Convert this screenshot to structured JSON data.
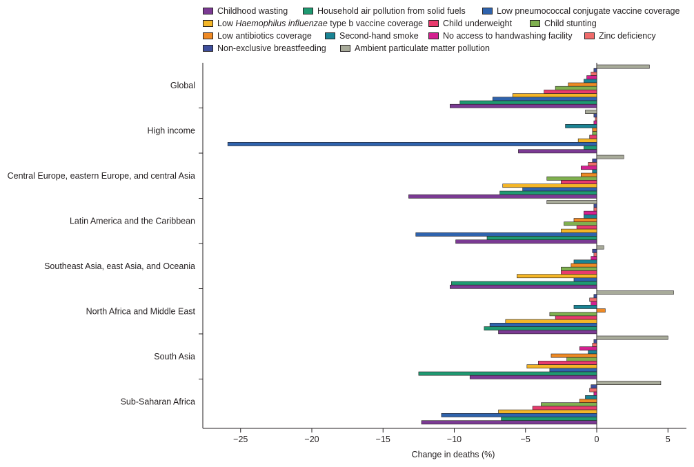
{
  "chart_data": {
    "type": "bar",
    "orientation": "horizontal",
    "title": "",
    "xlabel": "Change in deaths (%)",
    "ylabel": "",
    "xlim": [
      -27.5,
      6.2
    ],
    "xticks": [
      {
        "value": -25,
        "label": "−25"
      },
      {
        "value": -20,
        "label": "−20"
      },
      {
        "value": -15,
        "label": "−15"
      },
      {
        "value": -10,
        "label": "−10"
      },
      {
        "value": -5,
        "label": "−5"
      },
      {
        "value": 0,
        "label": "0"
      },
      {
        "value": 5,
        "label": "5"
      }
    ],
    "categories": [
      "Global",
      "High income",
      "Central Europe, eastern Europe, and central Asia",
      "Latin America and the Caribbean",
      "Southeast Asia, east Asia, and Oceania",
      "North Africa and Middle East",
      "South Asia",
      "Sub-Saharan Africa"
    ],
    "series": [
      {
        "name": "Ambient particulate matter pollution",
        "color": "#a8ab9a",
        "values": [
          3.7,
          -0.8,
          1.9,
          -3.5,
          0.5,
          5.4,
          5.0,
          4.5
        ]
      },
      {
        "name": "Non-exclusive breastfeeding",
        "color": "#3e4e9c",
        "values": [
          -0.2,
          -0.2,
          -0.3,
          -0.2,
          -0.3,
          -0.2,
          -0.2,
          -0.4
        ]
      },
      {
        "name": "Zinc deficiency",
        "color": "#ef6b6b",
        "values": [
          -0.4,
          -0.1,
          -0.6,
          -0.2,
          -0.2,
          -0.5,
          -0.3,
          -0.5
        ]
      },
      {
        "name": "No access to handwashing facility",
        "color": "#d3208f",
        "values": [
          -0.7,
          -0.2,
          -1.1,
          -0.9,
          -0.4,
          -0.4,
          -1.2,
          -0.2
        ]
      },
      {
        "name": "Second-hand smoke",
        "color": "#1a8494",
        "values": [
          -0.9,
          -2.2,
          -0.3,
          -0.9,
          -1.6,
          -1.6,
          -0.6,
          -0.8
        ]
      },
      {
        "name": "Low antibiotics coverage",
        "color": "#ef8a25",
        "values": [
          -2.0,
          -0.3,
          -1.1,
          -1.6,
          -1.8,
          0.6,
          -3.2,
          -1.2
        ]
      },
      {
        "name": "Child stunting",
        "color": "#7fb04f",
        "values": [
          -2.9,
          -0.3,
          -3.5,
          -2.3,
          -2.5,
          -3.3,
          -2.1,
          -3.9
        ]
      },
      {
        "name": "Child underweight",
        "color": "#e83a6d",
        "values": [
          -3.7,
          -0.5,
          -2.5,
          -1.4,
          -2.5,
          -2.9,
          -4.1,
          -4.5
        ]
      },
      {
        "name": "Low Haemophilus influenzae type b vaccine coverage",
        "color": "#f4b627",
        "values": [
          -5.9,
          -1.3,
          -6.6,
          -2.5,
          -5.6,
          -6.4,
          -4.9,
          -6.9
        ]
      },
      {
        "name": "Low pneumococcal conjugate vaccine coverage",
        "color": "#2f63ad",
        "values": [
          -7.3,
          -25.9,
          -5.2,
          -12.7,
          -1.6,
          -7.5,
          -3.3,
          -10.9
        ]
      },
      {
        "name": "Household air pollution from solid fuels",
        "color": "#1f9a72",
        "values": [
          -9.6,
          -0.9,
          -6.8,
          -7.7,
          -10.2,
          -7.9,
          -12.5,
          -6.7
        ]
      },
      {
        "name": "Childhood wasting",
        "color": "#7b3a93",
        "values": [
          -10.3,
          -5.5,
          -13.2,
          -9.9,
          -10.3,
          -6.9,
          -8.9,
          -12.3
        ]
      }
    ]
  },
  "legend": {
    "rows": [
      [
        {
          "label": "Childhood wasting",
          "color": "#7b3a93"
        },
        {
          "label": "Household air pollution from solid fuels",
          "color": "#1f9a72"
        },
        {
          "label": "Low pneumococcal conjugate vaccine coverage",
          "color": "#2f63ad"
        }
      ],
      [
        {
          "label_pre": "Low ",
          "label_italic": "Haemophilus influenzae",
          "label_post": " type b vaccine coverage",
          "color": "#f4b627"
        },
        {
          "label": "Child underweight",
          "color": "#e83a6d"
        },
        {
          "label": "Child stunting",
          "color": "#7fb04f"
        }
      ],
      [
        {
          "label": "Low antibiotics coverage",
          "color": "#ef8a25"
        },
        {
          "label": "Second-hand smoke",
          "color": "#1a8494"
        },
        {
          "label": "No access to handwashing facility",
          "color": "#d3208f"
        },
        {
          "label": "Zinc deficiency",
          "color": "#ef6b6b"
        }
      ],
      [
        {
          "label": "Non-exclusive breastfeeding",
          "color": "#3e4e9c"
        },
        {
          "label": "Ambient particulate matter pollution",
          "color": "#a8ab9a"
        }
      ]
    ]
  }
}
